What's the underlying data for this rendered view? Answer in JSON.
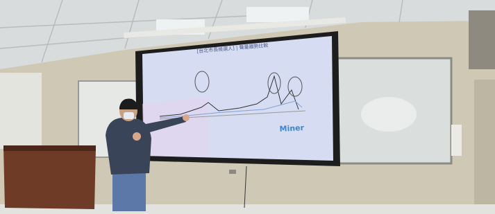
{
  "screen": {
    "title": "[台北市長候選人] | 聲量趨勢比較",
    "logo": "Miner"
  }
}
